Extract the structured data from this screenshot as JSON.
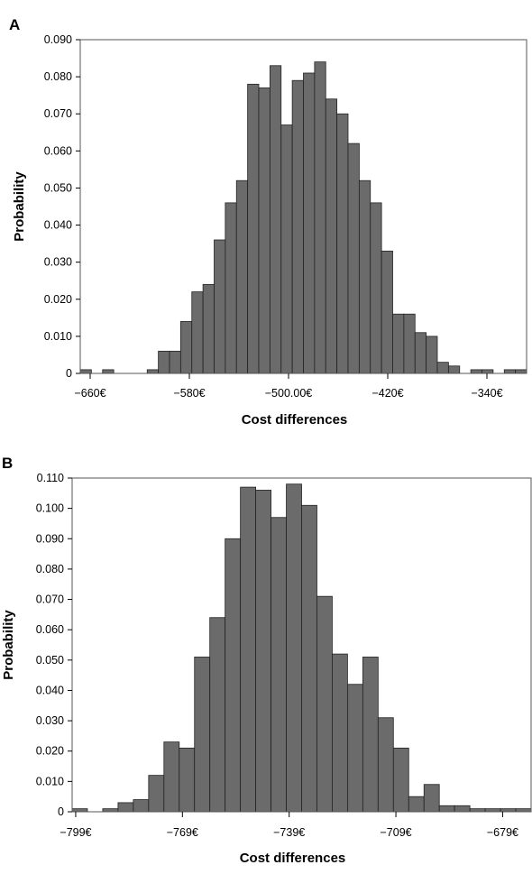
{
  "chart_data": [
    {
      "panel_label": "A",
      "type": "bar",
      "subtype": "histogram",
      "xlabel": "Cost differences",
      "ylabel": "Probability",
      "ylim": [
        0,
        0.09
      ],
      "xlim": [
        -668,
        -308
      ],
      "grid": false,
      "y_ticks": [
        0,
        0.01,
        0.02,
        0.03,
        0.04,
        0.05,
        0.06,
        0.07,
        0.08,
        0.09
      ],
      "y_tick_labels": [
        "0",
        "0.010",
        "0.020",
        "0.030",
        "0.040",
        "0.050",
        "0.060",
        "0.070",
        "0.080",
        "0.090"
      ],
      "x_ticks": [
        -660,
        -580,
        -500,
        -420,
        -340
      ],
      "x_tick_labels": [
        "−660€",
        "−580€",
        "−500.00€",
        "−420€",
        "−340€"
      ],
      "bin_start": -668,
      "bin_width": 9,
      "values": [
        0.001,
        0,
        0.001,
        0,
        0,
        0,
        0.001,
        0.006,
        0.006,
        0.014,
        0.022,
        0.024,
        0.036,
        0.046,
        0.052,
        0.078,
        0.077,
        0.083,
        0.067,
        0.079,
        0.081,
        0.084,
        0.074,
        0.07,
        0.062,
        0.052,
        0.046,
        0.033,
        0.016,
        0.016,
        0.011,
        0.01,
        0.003,
        0.002,
        0,
        0.001,
        0.001,
        0,
        0.001,
        0.001
      ]
    },
    {
      "panel_label": "B",
      "type": "bar",
      "subtype": "histogram",
      "xlabel": "Cost differences",
      "ylabel": "Probability",
      "ylim": [
        0,
        0.11
      ],
      "xlim": [
        -800,
        -671
      ],
      "grid": false,
      "y_ticks": [
        0,
        0.01,
        0.02,
        0.03,
        0.04,
        0.05,
        0.06,
        0.07,
        0.08,
        0.09,
        0.1,
        0.11
      ],
      "y_tick_labels": [
        "0",
        "0.010",
        "0.020",
        "0.030",
        "0.040",
        "0.050",
        "0.060",
        "0.070",
        "0.080",
        "0.090",
        "0.100",
        "0.110"
      ],
      "x_ticks": [
        -799,
        -769,
        -739,
        -709,
        -679
      ],
      "x_tick_labels": [
        "−799€",
        "−769€",
        "−739€",
        "−709€",
        "−679€"
      ],
      "bin_start": -800,
      "bin_width": 4.3,
      "values": [
        0.001,
        0,
        0.001,
        0.003,
        0.004,
        0.012,
        0.023,
        0.021,
        0.051,
        0.064,
        0.09,
        0.107,
        0.106,
        0.097,
        0.108,
        0.101,
        0.071,
        0.052,
        0.042,
        0.051,
        0.031,
        0.021,
        0.005,
        0.009,
        0.002,
        0.002,
        0.001,
        0.001,
        0.001,
        0.001
      ]
    }
  ]
}
